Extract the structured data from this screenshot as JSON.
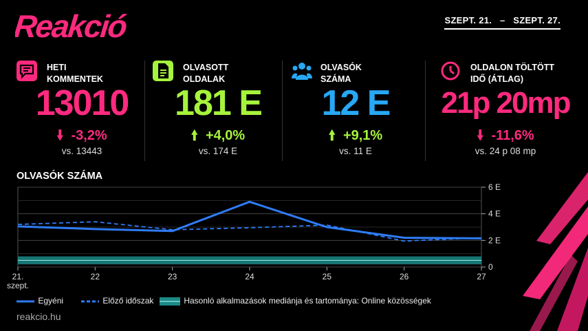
{
  "logo_text": "Reakció",
  "date_range": {
    "start": "SZEPT. 21.",
    "separator": "–",
    "end": "SZEPT. 27."
  },
  "stats": [
    {
      "label": "HETI\nKOMMENTEK",
      "value": "13010",
      "change": "-3,2%",
      "direction": "down",
      "vs": "vs. 13443",
      "color": "#ff2a7f",
      "icon": "comment-icon"
    },
    {
      "label": "OLVASOTT\nOLDALAK",
      "value": "181 E",
      "change": "+4,0%",
      "direction": "up",
      "vs": "vs. 174 E",
      "color": "#a6f33c",
      "icon": "document-icon"
    },
    {
      "label": "OLVASÓK\nSZÁMA",
      "value": "12 E",
      "change": "+9,1%",
      "direction": "up",
      "vs": "vs. 11 E",
      "color": "#27a8f5",
      "icon": "people-icon"
    },
    {
      "label": "OLDALON TÖLTÖTT\nIDŐ (ÁTLAG)",
      "value": "21p 20mp",
      "change": "-11,6%",
      "direction": "down",
      "vs": "vs. 24 p 08 mp",
      "color": "#ff2a7f",
      "icon": "clock-icon"
    }
  ],
  "colors": {
    "up": "#a6f33c",
    "down": "#ff2a7f",
    "line": "#2f7cf6",
    "band": "#1b8a86"
  },
  "chart_data": {
    "type": "line",
    "title": "OLVASÓK SZÁMA",
    "categories": [
      "21.",
      "22",
      "23",
      "24",
      "25",
      "26",
      "27"
    ],
    "first_sublabel": "szept.",
    "yticks": [
      "0",
      "2 E",
      "4 E",
      "6 E"
    ],
    "ylim": [
      0,
      6000
    ],
    "series": [
      {
        "name": "Egyéni",
        "style": "solid",
        "values": [
          3050,
          2850,
          2700,
          4900,
          3000,
          2200,
          2150
        ]
      },
      {
        "name": "Előző időszak",
        "style": "dashed",
        "values": [
          3200,
          3400,
          2800,
          2950,
          3150,
          1950,
          2200
        ]
      }
    ],
    "band": {
      "name": "Hasonló alkalmazások mediánja és tartománya: Online közösségek",
      "lower": 200,
      "upper": 800,
      "median": 500
    }
  },
  "footer": "reakcio.hu"
}
